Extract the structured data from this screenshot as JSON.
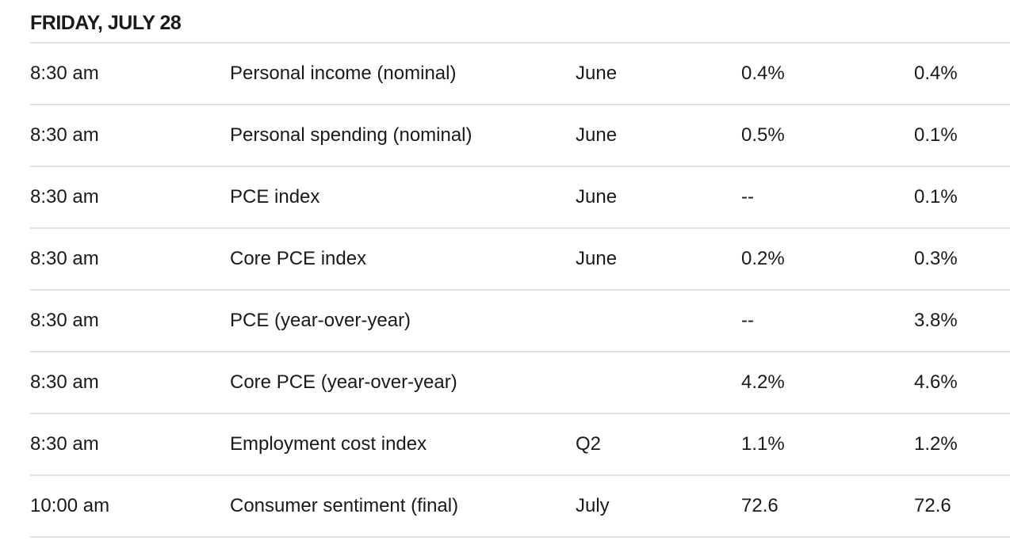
{
  "day": {
    "heading": "FRIDAY, JULY 28"
  },
  "rows": [
    {
      "time": "8:30 am",
      "report": "Personal income (nominal)",
      "period": "June",
      "forecast": "0.4%",
      "previous": "0.4%"
    },
    {
      "time": "8:30 am",
      "report": "Personal spending (nominal)",
      "period": "June",
      "forecast": "0.5%",
      "previous": "0.1%"
    },
    {
      "time": "8:30 am",
      "report": "PCE index",
      "period": "June",
      "forecast": "--",
      "previous": "0.1%"
    },
    {
      "time": "8:30 am",
      "report": "Core PCE index",
      "period": "June",
      "forecast": "0.2%",
      "previous": "0.3%"
    },
    {
      "time": "8:30 am",
      "report": "PCE (year-over-year)",
      "period": "",
      "forecast": "--",
      "previous": "3.8%"
    },
    {
      "time": "8:30 am",
      "report": "Core PCE (year-over-year)",
      "period": "",
      "forecast": "4.2%",
      "previous": "4.6%"
    },
    {
      "time": "8:30 am",
      "report": "Employment cost index",
      "period": "Q2",
      "forecast": "1.1%",
      "previous": "1.2%"
    },
    {
      "time": "10:00 am",
      "report": "Consumer sentiment (final)",
      "period": "July",
      "forecast": "72.6",
      "previous": "72.6"
    }
  ]
}
